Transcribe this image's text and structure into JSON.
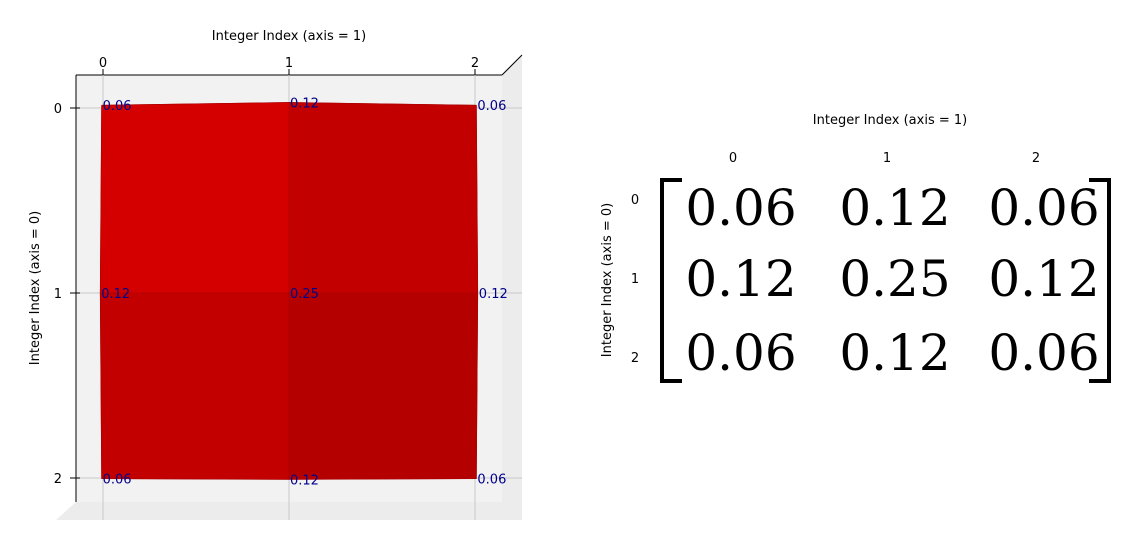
{
  "colors": {
    "surface_light": "#d40000",
    "surface_mid": "#c20000",
    "surface_dark": "#b50000",
    "value_label": "#00008b",
    "pane": "#f2f2f2",
    "grid": "#c8c8c8"
  },
  "chart_data": [
    {
      "type": "surface",
      "view": "top-down",
      "xlabel": "Integer Index (axis = 1)",
      "ylabel": "Integer Index (axis = 0)",
      "xticks": [
        "0",
        "1",
        "2"
      ],
      "yticks": [
        "0",
        "1",
        "2"
      ],
      "values": [
        [
          0.0625,
          0.125,
          0.0625
        ],
        [
          0.125,
          0.25,
          0.125
        ],
        [
          0.0625,
          0.125,
          0.0625
        ]
      ],
      "value_labels": [
        [
          "0.06",
          "0.12",
          "0.06"
        ],
        [
          "0.12",
          "0.25",
          "0.12"
        ],
        [
          "0.06",
          "0.12",
          "0.06"
        ]
      ]
    },
    {
      "type": "table",
      "xlabel": "Integer Index (axis = 1)",
      "ylabel": "Integer Index (axis = 0)",
      "xticks": [
        "0",
        "1",
        "2"
      ],
      "yticks": [
        "0",
        "1",
        "2"
      ],
      "cells": [
        [
          "0.06",
          "0.12",
          "0.06"
        ],
        [
          "0.12",
          "0.25",
          "0.12"
        ],
        [
          "0.06",
          "0.12",
          "0.06"
        ]
      ]
    }
  ]
}
